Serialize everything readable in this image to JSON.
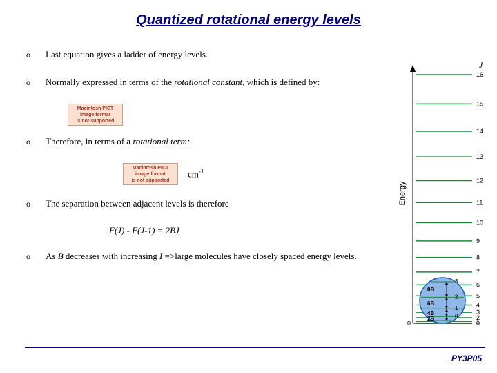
{
  "title": "Quantized rotational energy levels",
  "bullets": [
    {
      "text": "Last equation gives a ladder of energy levels."
    },
    {
      "text_html": "Normally expressed in terms of the <span class=\"italic\">rotational constant</span>, which is defined by:"
    },
    {
      "text_html": "Therefore, in terms of a <span class=\"italic\">rotational term:</span>"
    },
    {
      "text": "The separation between adjacent levels is therefore"
    },
    {
      "text_html": "As <span class=\"italic\">B</span> decreases with increasing <span class=\"italic\">I</span> =>large molecules have closely spaced energy levels."
    }
  ],
  "pict": {
    "line1": "Macintosh PICT",
    "line2": "image format",
    "line3": "is not supported"
  },
  "unit_label": "cm",
  "unit_sup": "-1",
  "formula": "F(J) - F(J-1) = 2BJ",
  "footer": "PY3P05",
  "figure": {
    "j_label": "J",
    "j_values": [
      16,
      15,
      14,
      13,
      12,
      11,
      10,
      9,
      8,
      7,
      6,
      5,
      4,
      3,
      2,
      1,
      0
    ],
    "energy_label": "Energy",
    "circle_labels": [
      {
        "t": "8B",
        "n": "3"
      },
      {
        "t": "6B",
        "n": "2"
      },
      {
        "t": "4B",
        "n": "1"
      },
      {
        "t": "2B",
        "n": "0"
      }
    ],
    "colors": {
      "line": "#1a8a3a",
      "circle_fill": "#8fb7e8",
      "circle_stroke": "#2060b0",
      "text": "#000000",
      "j_italic": "#000000"
    }
  }
}
